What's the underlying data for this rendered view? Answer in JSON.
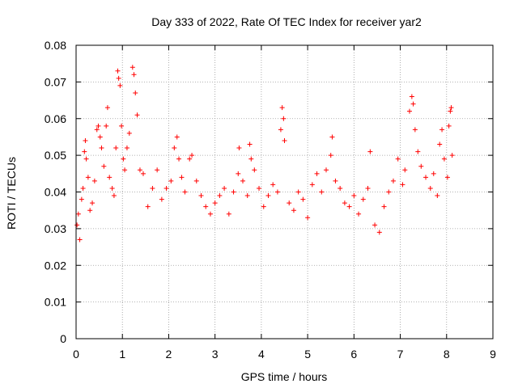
{
  "chart_data": {
    "type": "scatter",
    "title": "Day 333 of 2022, Rate Of TEC Index for receiver yar2",
    "xlabel": "GPS time / hours",
    "ylabel": "ROTI / TECUs",
    "xlim": [
      0,
      9
    ],
    "ylim": [
      0,
      0.08
    ],
    "x_ticks": [
      "0",
      "1",
      "2",
      "3",
      "4",
      "5",
      "6",
      "7",
      "8",
      "9"
    ],
    "y_ticks": [
      "0",
      "0.01",
      "0.02",
      "0.03",
      "0.04",
      "0.05",
      "0.06",
      "0.07",
      "0.08"
    ],
    "grid": true,
    "marker": "plus",
    "color": "#ff0000",
    "series": [
      {
        "points": [
          [
            0.02,
            0.031
          ],
          [
            0.05,
            0.034
          ],
          [
            0.08,
            0.027
          ],
          [
            0.12,
            0.038
          ],
          [
            0.15,
            0.041
          ],
          [
            0.18,
            0.051
          ],
          [
            0.2,
            0.054
          ],
          [
            0.22,
            0.049
          ],
          [
            0.26,
            0.044
          ],
          [
            0.3,
            0.035
          ],
          [
            0.35,
            0.037
          ],
          [
            0.4,
            0.043
          ],
          [
            0.45,
            0.057
          ],
          [
            0.48,
            0.058
          ],
          [
            0.52,
            0.055
          ],
          [
            0.55,
            0.052
          ],
          [
            0.6,
            0.047
          ],
          [
            0.65,
            0.058
          ],
          [
            0.68,
            0.063
          ],
          [
            0.72,
            0.044
          ],
          [
            0.78,
            0.041
          ],
          [
            0.82,
            0.039
          ],
          [
            0.86,
            0.052
          ],
          [
            0.9,
            0.073
          ],
          [
            0.92,
            0.071
          ],
          [
            0.95,
            0.069
          ],
          [
            0.98,
            0.058
          ],
          [
            1.02,
            0.049
          ],
          [
            1.05,
            0.046
          ],
          [
            1.1,
            0.052
          ],
          [
            1.15,
            0.056
          ],
          [
            1.22,
            0.074
          ],
          [
            1.25,
            0.072
          ],
          [
            1.28,
            0.067
          ],
          [
            1.32,
            0.061
          ],
          [
            1.38,
            0.046
          ],
          [
            1.45,
            0.045
          ],
          [
            1.55,
            0.036
          ],
          [
            1.65,
            0.041
          ],
          [
            1.75,
            0.046
          ],
          [
            1.85,
            0.038
          ],
          [
            1.95,
            0.041
          ],
          [
            2.05,
            0.043
          ],
          [
            2.12,
            0.052
          ],
          [
            2.18,
            0.055
          ],
          [
            2.22,
            0.049
          ],
          [
            2.28,
            0.044
          ],
          [
            2.35,
            0.04
          ],
          [
            2.45,
            0.049
          ],
          [
            2.5,
            0.05
          ],
          [
            2.6,
            0.043
          ],
          [
            2.7,
            0.039
          ],
          [
            2.8,
            0.036
          ],
          [
            2.9,
            0.034
          ],
          [
            3.0,
            0.037
          ],
          [
            3.1,
            0.039
          ],
          [
            3.2,
            0.041
          ],
          [
            3.3,
            0.034
          ],
          [
            3.4,
            0.04
          ],
          [
            3.5,
            0.045
          ],
          [
            3.52,
            0.052
          ],
          [
            3.6,
            0.043
          ],
          [
            3.7,
            0.039
          ],
          [
            3.75,
            0.053
          ],
          [
            3.78,
            0.049
          ],
          [
            3.85,
            0.046
          ],
          [
            3.95,
            0.041
          ],
          [
            4.05,
            0.036
          ],
          [
            4.15,
            0.039
          ],
          [
            4.25,
            0.042
          ],
          [
            4.35,
            0.04
          ],
          [
            4.42,
            0.057
          ],
          [
            4.45,
            0.063
          ],
          [
            4.48,
            0.06
          ],
          [
            4.5,
            0.054
          ],
          [
            4.6,
            0.037
          ],
          [
            4.7,
            0.035
          ],
          [
            4.8,
            0.04
          ],
          [
            4.9,
            0.038
          ],
          [
            5.0,
            0.033
          ],
          [
            5.1,
            0.042
          ],
          [
            5.2,
            0.045
          ],
          [
            5.3,
            0.04
          ],
          [
            5.4,
            0.046
          ],
          [
            5.5,
            0.05
          ],
          [
            5.53,
            0.055
          ],
          [
            5.6,
            0.043
          ],
          [
            5.7,
            0.041
          ],
          [
            5.8,
            0.037
          ],
          [
            5.9,
            0.036
          ],
          [
            6.0,
            0.039
          ],
          [
            6.1,
            0.034
          ],
          [
            6.2,
            0.038
          ],
          [
            6.3,
            0.041
          ],
          [
            6.35,
            0.051
          ],
          [
            6.45,
            0.031
          ],
          [
            6.55,
            0.029
          ],
          [
            6.65,
            0.036
          ],
          [
            6.75,
            0.04
          ],
          [
            6.85,
            0.043
          ],
          [
            6.95,
            0.049
          ],
          [
            7.05,
            0.042
          ],
          [
            7.1,
            0.046
          ],
          [
            7.2,
            0.062
          ],
          [
            7.25,
            0.066
          ],
          [
            7.28,
            0.064
          ],
          [
            7.32,
            0.057
          ],
          [
            7.38,
            0.051
          ],
          [
            7.45,
            0.047
          ],
          [
            7.55,
            0.044
          ],
          [
            7.65,
            0.041
          ],
          [
            7.72,
            0.045
          ],
          [
            7.8,
            0.039
          ],
          [
            7.85,
            0.053
          ],
          [
            7.9,
            0.057
          ],
          [
            7.95,
            0.049
          ],
          [
            8.02,
            0.044
          ],
          [
            8.05,
            0.058
          ],
          [
            8.08,
            0.062
          ],
          [
            8.1,
            0.063
          ],
          [
            8.12,
            0.05
          ]
        ]
      }
    ]
  }
}
